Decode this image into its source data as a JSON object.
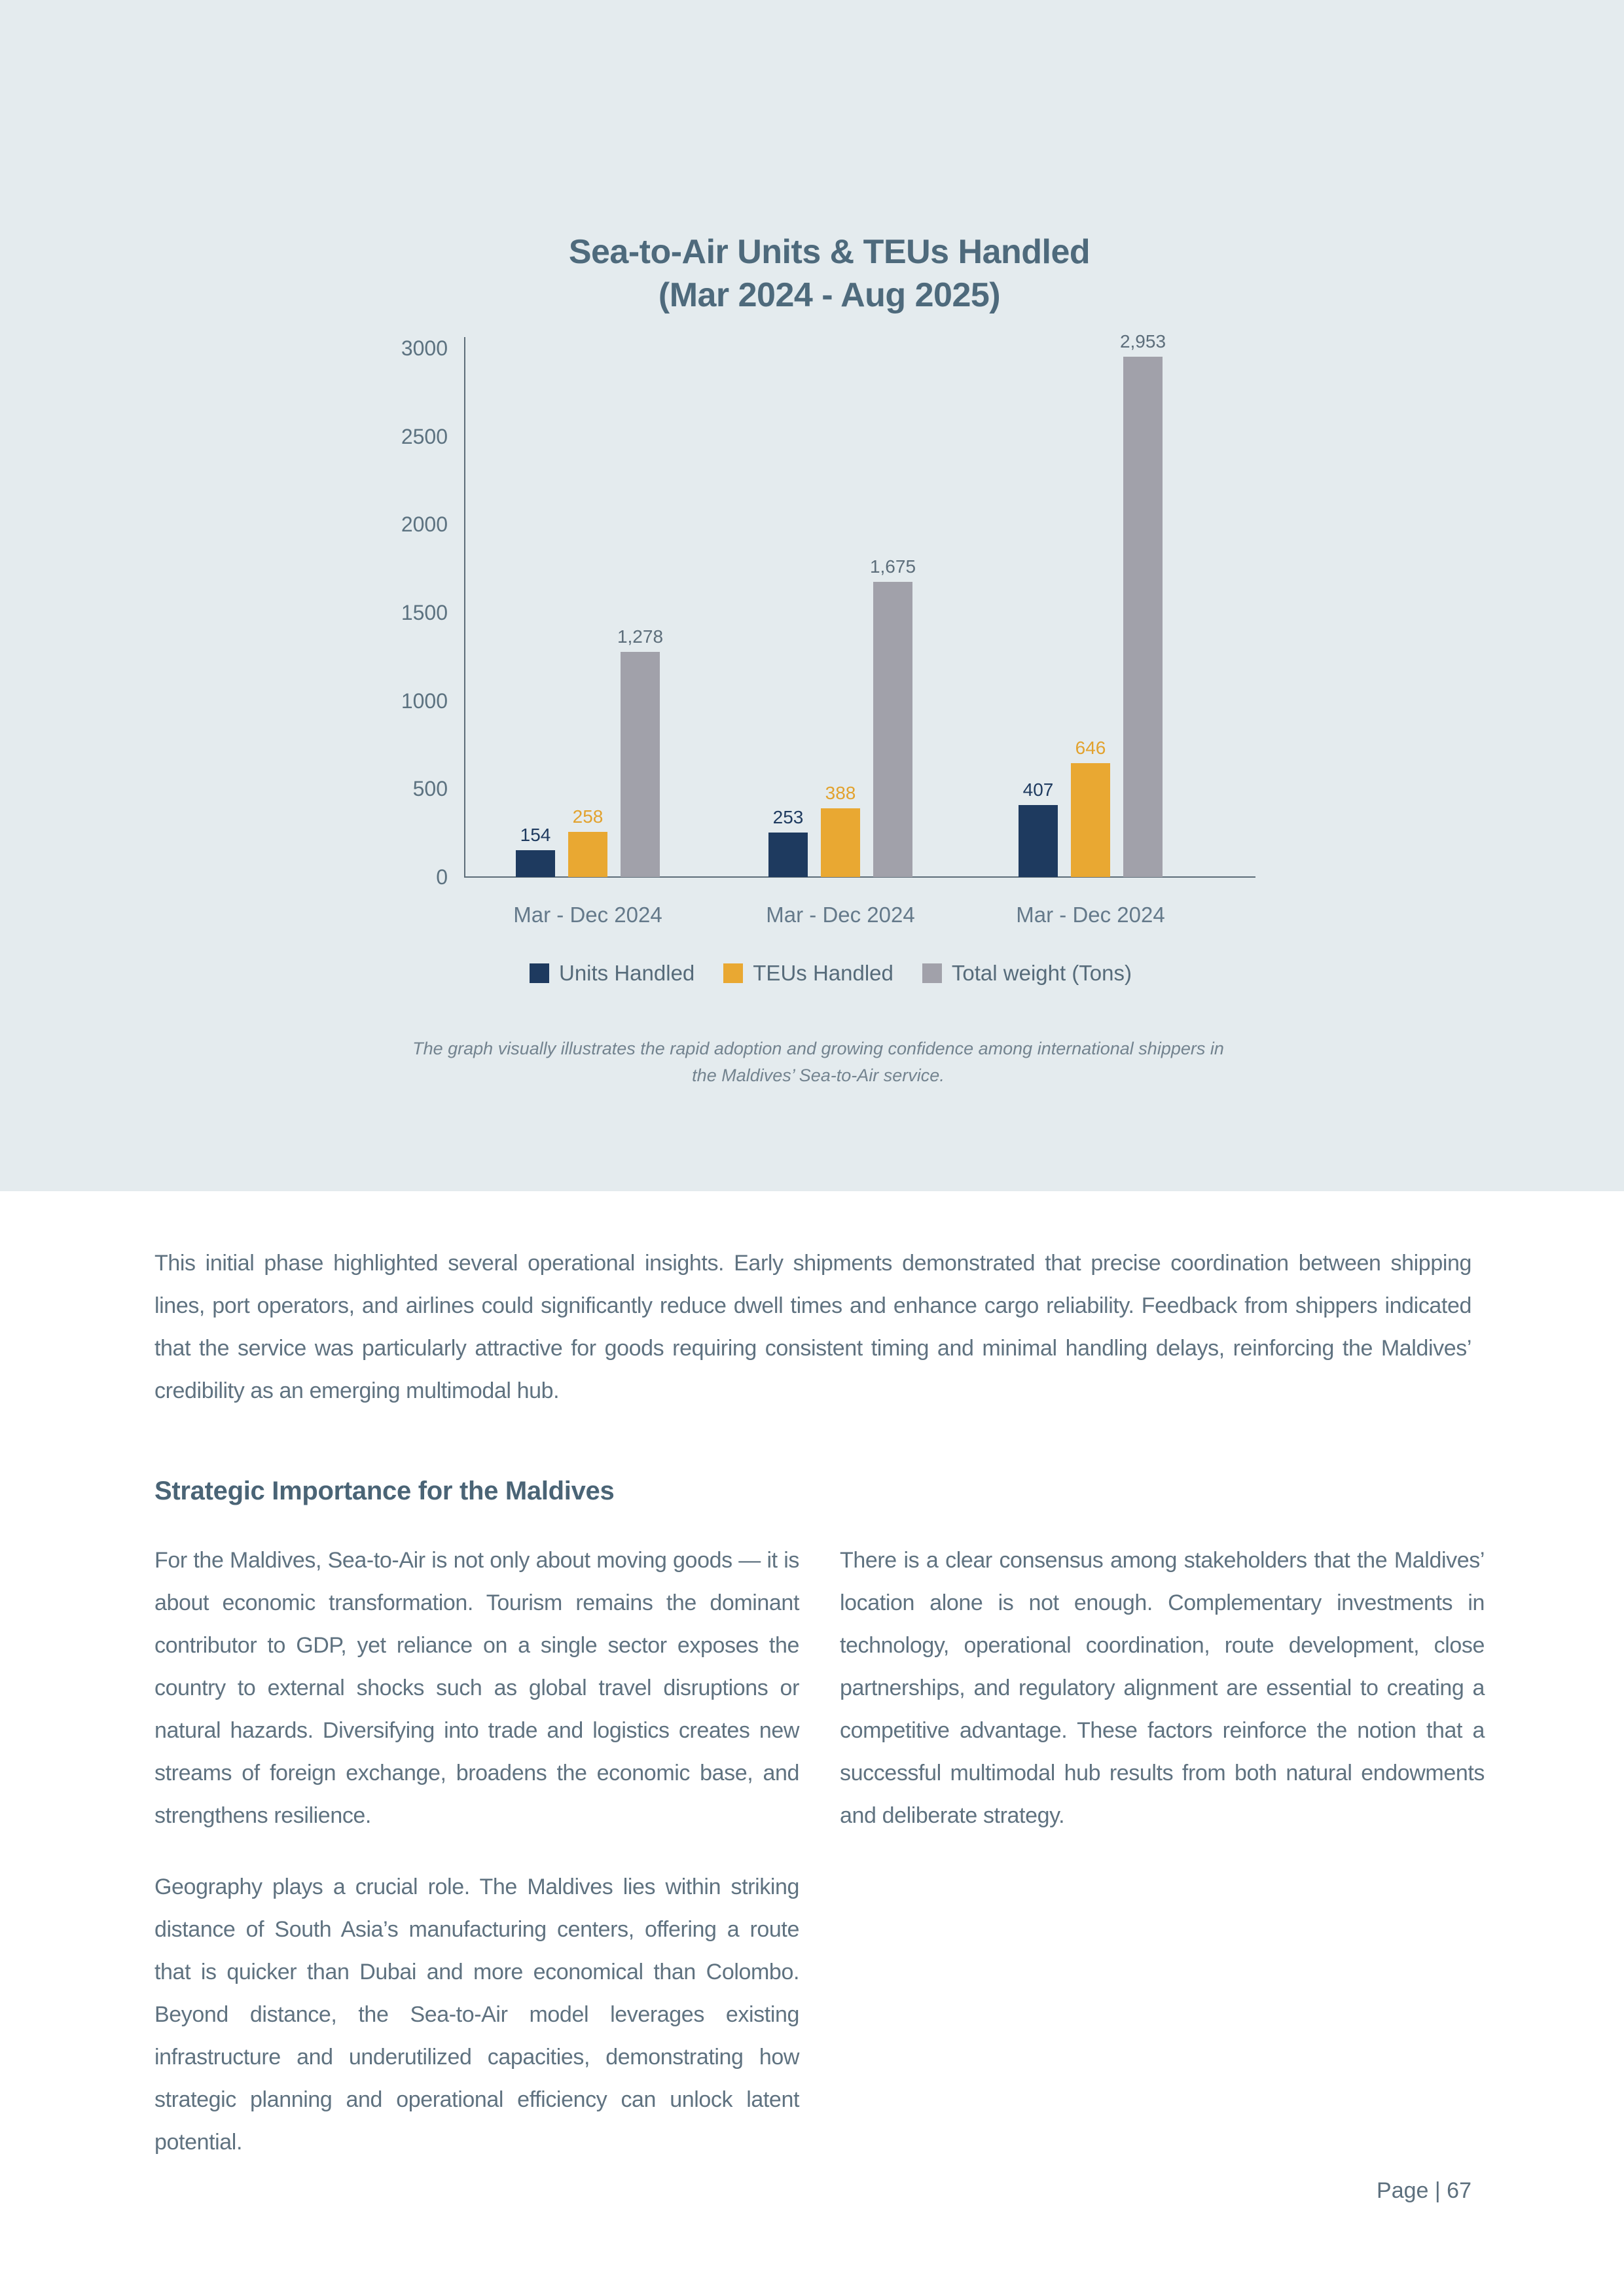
{
  "page": {
    "footer": "Page | 67",
    "background_color": "#ffffff",
    "panel_color": "#e4ebee"
  },
  "chart_data": {
    "type": "bar",
    "title_line1": "Sea-to-Air Units & TEUs Handled",
    "title_line2": "(Mar 2024 - Aug 2025)",
    "categories": [
      "Mar - Dec 2024",
      "Mar - Dec 2024",
      "Mar - Dec 2024"
    ],
    "series": [
      {
        "name": "Units Handled",
        "color": "#1e3a5f",
        "label_color": "#1e3a5f",
        "values": [
          154,
          253,
          407
        ],
        "labels": [
          "154",
          "253",
          "407"
        ]
      },
      {
        "name": "TEUs Handled",
        "color": "#e9a832",
        "label_color": "#e2a22e",
        "values": [
          258,
          388,
          646
        ],
        "labels": [
          "258",
          "388",
          "646"
        ]
      },
      {
        "name": "Total weight (Tons)",
        "color": "#a1a1aa",
        "label_color": "#5d6e7b",
        "values": [
          1278,
          1675,
          2953
        ],
        "labels": [
          "1,278",
          "1,675",
          "2,953"
        ]
      }
    ],
    "y_ticks": [
      0,
      500,
      1000,
      1500,
      2000,
      2500,
      3000
    ],
    "ylim": [
      0,
      3000
    ],
    "grid": false,
    "legend_position": "bottom",
    "caption": "The graph visually illustrates the rapid adoption and growing confidence among international shippers in the Maldives’ Sea-to-Air service."
  },
  "body": {
    "paragraph1": "This initial phase highlighted several operational insights. Early shipments demonstrated that precise coordination between shipping lines, port operators, and airlines could significantly reduce dwell times and enhance cargo reliability. Feedback from shippers indicated that the service was particularly attractive for goods requiring consistent timing and minimal handling delays, reinforcing the Maldives’ credibility as an emerging multimodal hub.",
    "heading": "Strategic Importance for the Maldives",
    "col_left_p1": "For the Maldives, Sea-to-Air is not only about moving goods — it is about economic transformation. Tourism remains the dominant contributor to GDP, yet reliance on a single sector exposes the country to external shocks such as global travel disruptions or natural hazards. Diversifying into trade and logistics creates new streams of foreign exchange, broadens the economic base, and strengthens resilience.",
    "col_left_p2": "Geography plays a crucial role. The Maldives lies within striking distance of South Asia’s manufacturing centers, offering a route that is quicker than Dubai and more economical than Colombo. Beyond distance, the Sea-to-Air model leverages existing infrastructure and underutilized capacities, demonstrating how strategic planning and operational efficiency can unlock latent potential.",
    "col_right_p1": "There is a clear consensus among stakeholders that the Maldives’ location alone is not enough. Complementary investments in technology, operational coordination, route development, close partnerships, and regulatory alignment are essential to creating a competitive advantage. These factors reinforce the notion that a successful multimodal hub results from both natural endowments and deliberate strategy."
  }
}
